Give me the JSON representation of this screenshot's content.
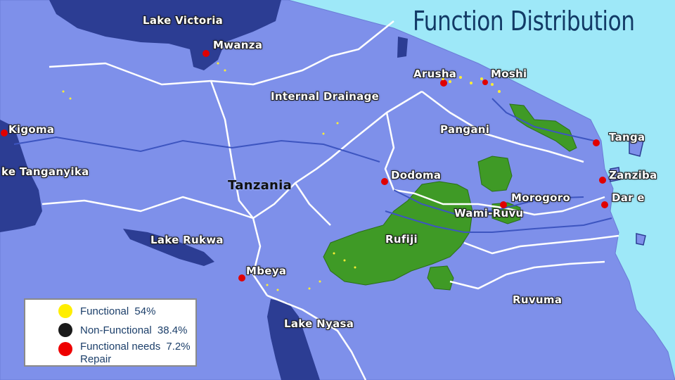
{
  "title": "Function Distribution",
  "map": {
    "country": "Tanzania",
    "basins": [
      "Lake Victoria",
      "Internal Drainage",
      "Pangani",
      "Lake Tanganyika",
      "Lake Rukwa",
      "Wami-Ruvu",
      "Rufiji",
      "Ruvuma",
      "Lake Nyasa"
    ],
    "cities": [
      "Mwanza",
      "Arusha",
      "Moshi",
      "Kigoma",
      "Tanga",
      "Zanziba",
      "Dodoma",
      "Morogoro",
      "Dar e",
      "Mbeya"
    ],
    "colors": {
      "sea": "#9ee8f8",
      "land": "#7e90ea",
      "lake": "#2c3d93",
      "rufiji_zone": "#3f9a26",
      "boundary": "#ffffff",
      "city": "#e00000"
    }
  },
  "labels": {
    "lake_victoria": "Lake Victoria",
    "mwanza": "Mwanza",
    "arusha": "Arusha",
    "moshi": "Moshi",
    "internal_drainage": "Internal Drainage",
    "kigoma": "Kigoma",
    "pangani": "Pangani",
    "tanga": "Tanga",
    "lake_tanganyika": "ke Tanganyika",
    "dodoma": "Dodoma",
    "zanziba": "Zanziba",
    "tanzania": "Tanzania",
    "morogoro": "Morogoro",
    "dar": "Dar e",
    "wami_ruvu": "Wami-Ruvu",
    "lake_rukwa": "Lake Rukwa",
    "rufiji": "Rufiji",
    "mbeya": "Mbeya",
    "ruvuma": "Ruvuma",
    "lake_nyasa": "Lake Nyasa"
  },
  "legend": {
    "items": [
      {
        "label": "Functional",
        "value": "54%",
        "color": "#ffee00"
      },
      {
        "label": "Non-Functional",
        "value": "38.4%",
        "color": "#1a1a1a"
      },
      {
        "label": "Functional needs",
        "value": "7.2%",
        "label2": "Repair",
        "color": "#ee0000"
      }
    ]
  }
}
